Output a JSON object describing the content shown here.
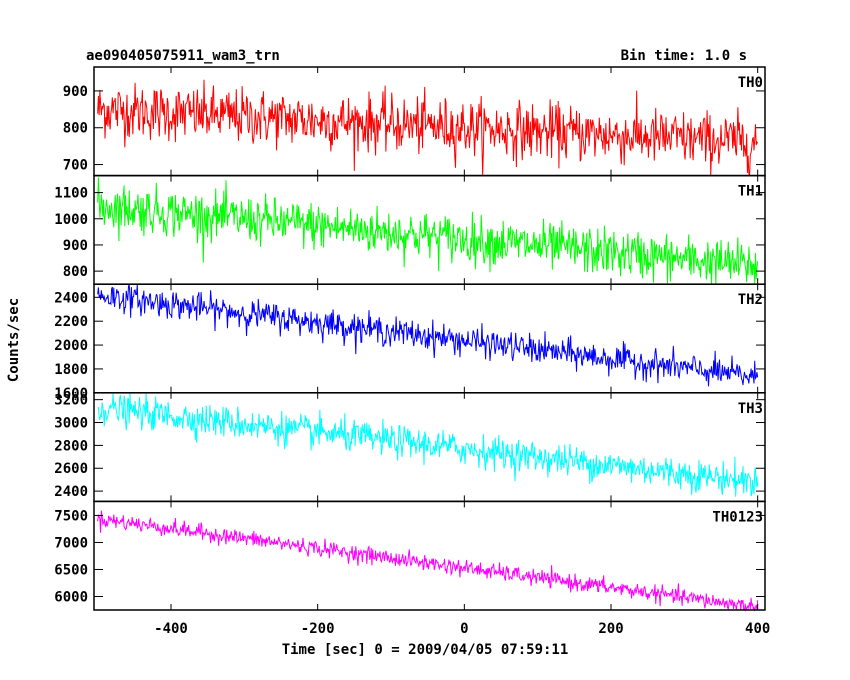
{
  "chart_data": {
    "type": "line",
    "title_left": "ae090405075911_wam3_trn",
    "title_right": "Bin time: 1.0 s",
    "xlabel": "Time [sec] 0 = 2009/04/05 07:59:11",
    "ylabel": "Counts/sec",
    "xlim": [
      -505,
      410
    ],
    "xticks": [
      -400,
      -200,
      0,
      200,
      400
    ],
    "x_range": [
      -500,
      400
    ],
    "bin_time": 1.0,
    "panels": [
      {
        "name": "TH0",
        "color": "#ff0000",
        "ylim": [
          670,
          965
        ],
        "yticks": [
          700,
          800,
          900
        ],
        "start": 850,
        "end": 760,
        "scatter": 38
      },
      {
        "name": "TH1",
        "color": "#00ff00",
        "ylim": [
          750,
          1165
        ],
        "yticks": [
          800,
          900,
          1000,
          1100
        ],
        "start": 1050,
        "end": 820,
        "scatter": 45
      },
      {
        "name": "TH2",
        "color": "#0000ff",
        "ylim": [
          1600,
          2510
        ],
        "yticks": [
          1600,
          1800,
          2000,
          2200,
          2400
        ],
        "start": 2420,
        "end": 1730,
        "scatter": 60
      },
      {
        "name": "TH3",
        "color": "#00ffff",
        "ylim": [
          2310,
          3260
        ],
        "yticks": [
          2400,
          2600,
          2800,
          3000,
          3200
        ],
        "start": 3130,
        "end": 2480,
        "scatter": 70
      },
      {
        "name": "TH0123",
        "color": "#ff00ff",
        "ylim": [
          5750,
          7760
        ],
        "yticks": [
          6000,
          6500,
          7000,
          7500
        ],
        "start": 7440,
        "end": 5800,
        "scatter": 75
      }
    ]
  }
}
